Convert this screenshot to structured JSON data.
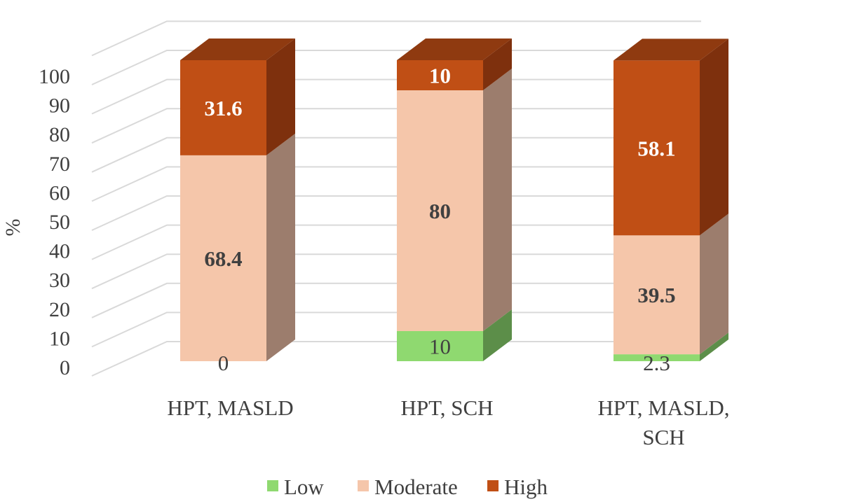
{
  "chart_data": {
    "type": "bar",
    "stacked": true,
    "style": "3d",
    "title": "",
    "xlabel": "",
    "ylabel": "%",
    "ylim": [
      0,
      100
    ],
    "yticks": [
      0,
      10,
      20,
      30,
      40,
      50,
      60,
      70,
      80,
      90,
      100
    ],
    "grid": true,
    "legend_position": "bottom",
    "categories": [
      [
        "HPT, MASLD"
      ],
      [
        "HPT, SCH"
      ],
      [
        "HPT, MASLD,",
        "SCH"
      ]
    ],
    "series": [
      {
        "name": "Low",
        "values": [
          0,
          10,
          2.3
        ],
        "labels": [
          "0",
          "10",
          "2.3"
        ],
        "color": "#8FD970",
        "side_color": "#5C8E49",
        "top_color": "#A6E28C",
        "label_color": "#404040",
        "label_bold": false
      },
      {
        "name": "Moderate",
        "values": [
          68.4,
          80,
          39.5
        ],
        "labels": [
          "68.4",
          "80",
          "39.5"
        ],
        "color": "#F5C6AA",
        "side_color": "#9C7D6D",
        "top_color": "#F8D7C3",
        "label_color": "#404040",
        "label_bold": true
      },
      {
        "name": "High",
        "values": [
          31.6,
          10,
          58.1
        ],
        "labels": [
          "31.6",
          "10",
          "58.1"
        ],
        "color": "#C04F15",
        "side_color": "#7E300D",
        "top_color": "#8F3A10",
        "label_color": "#FFFFFF",
        "label_bold": true
      }
    ]
  }
}
